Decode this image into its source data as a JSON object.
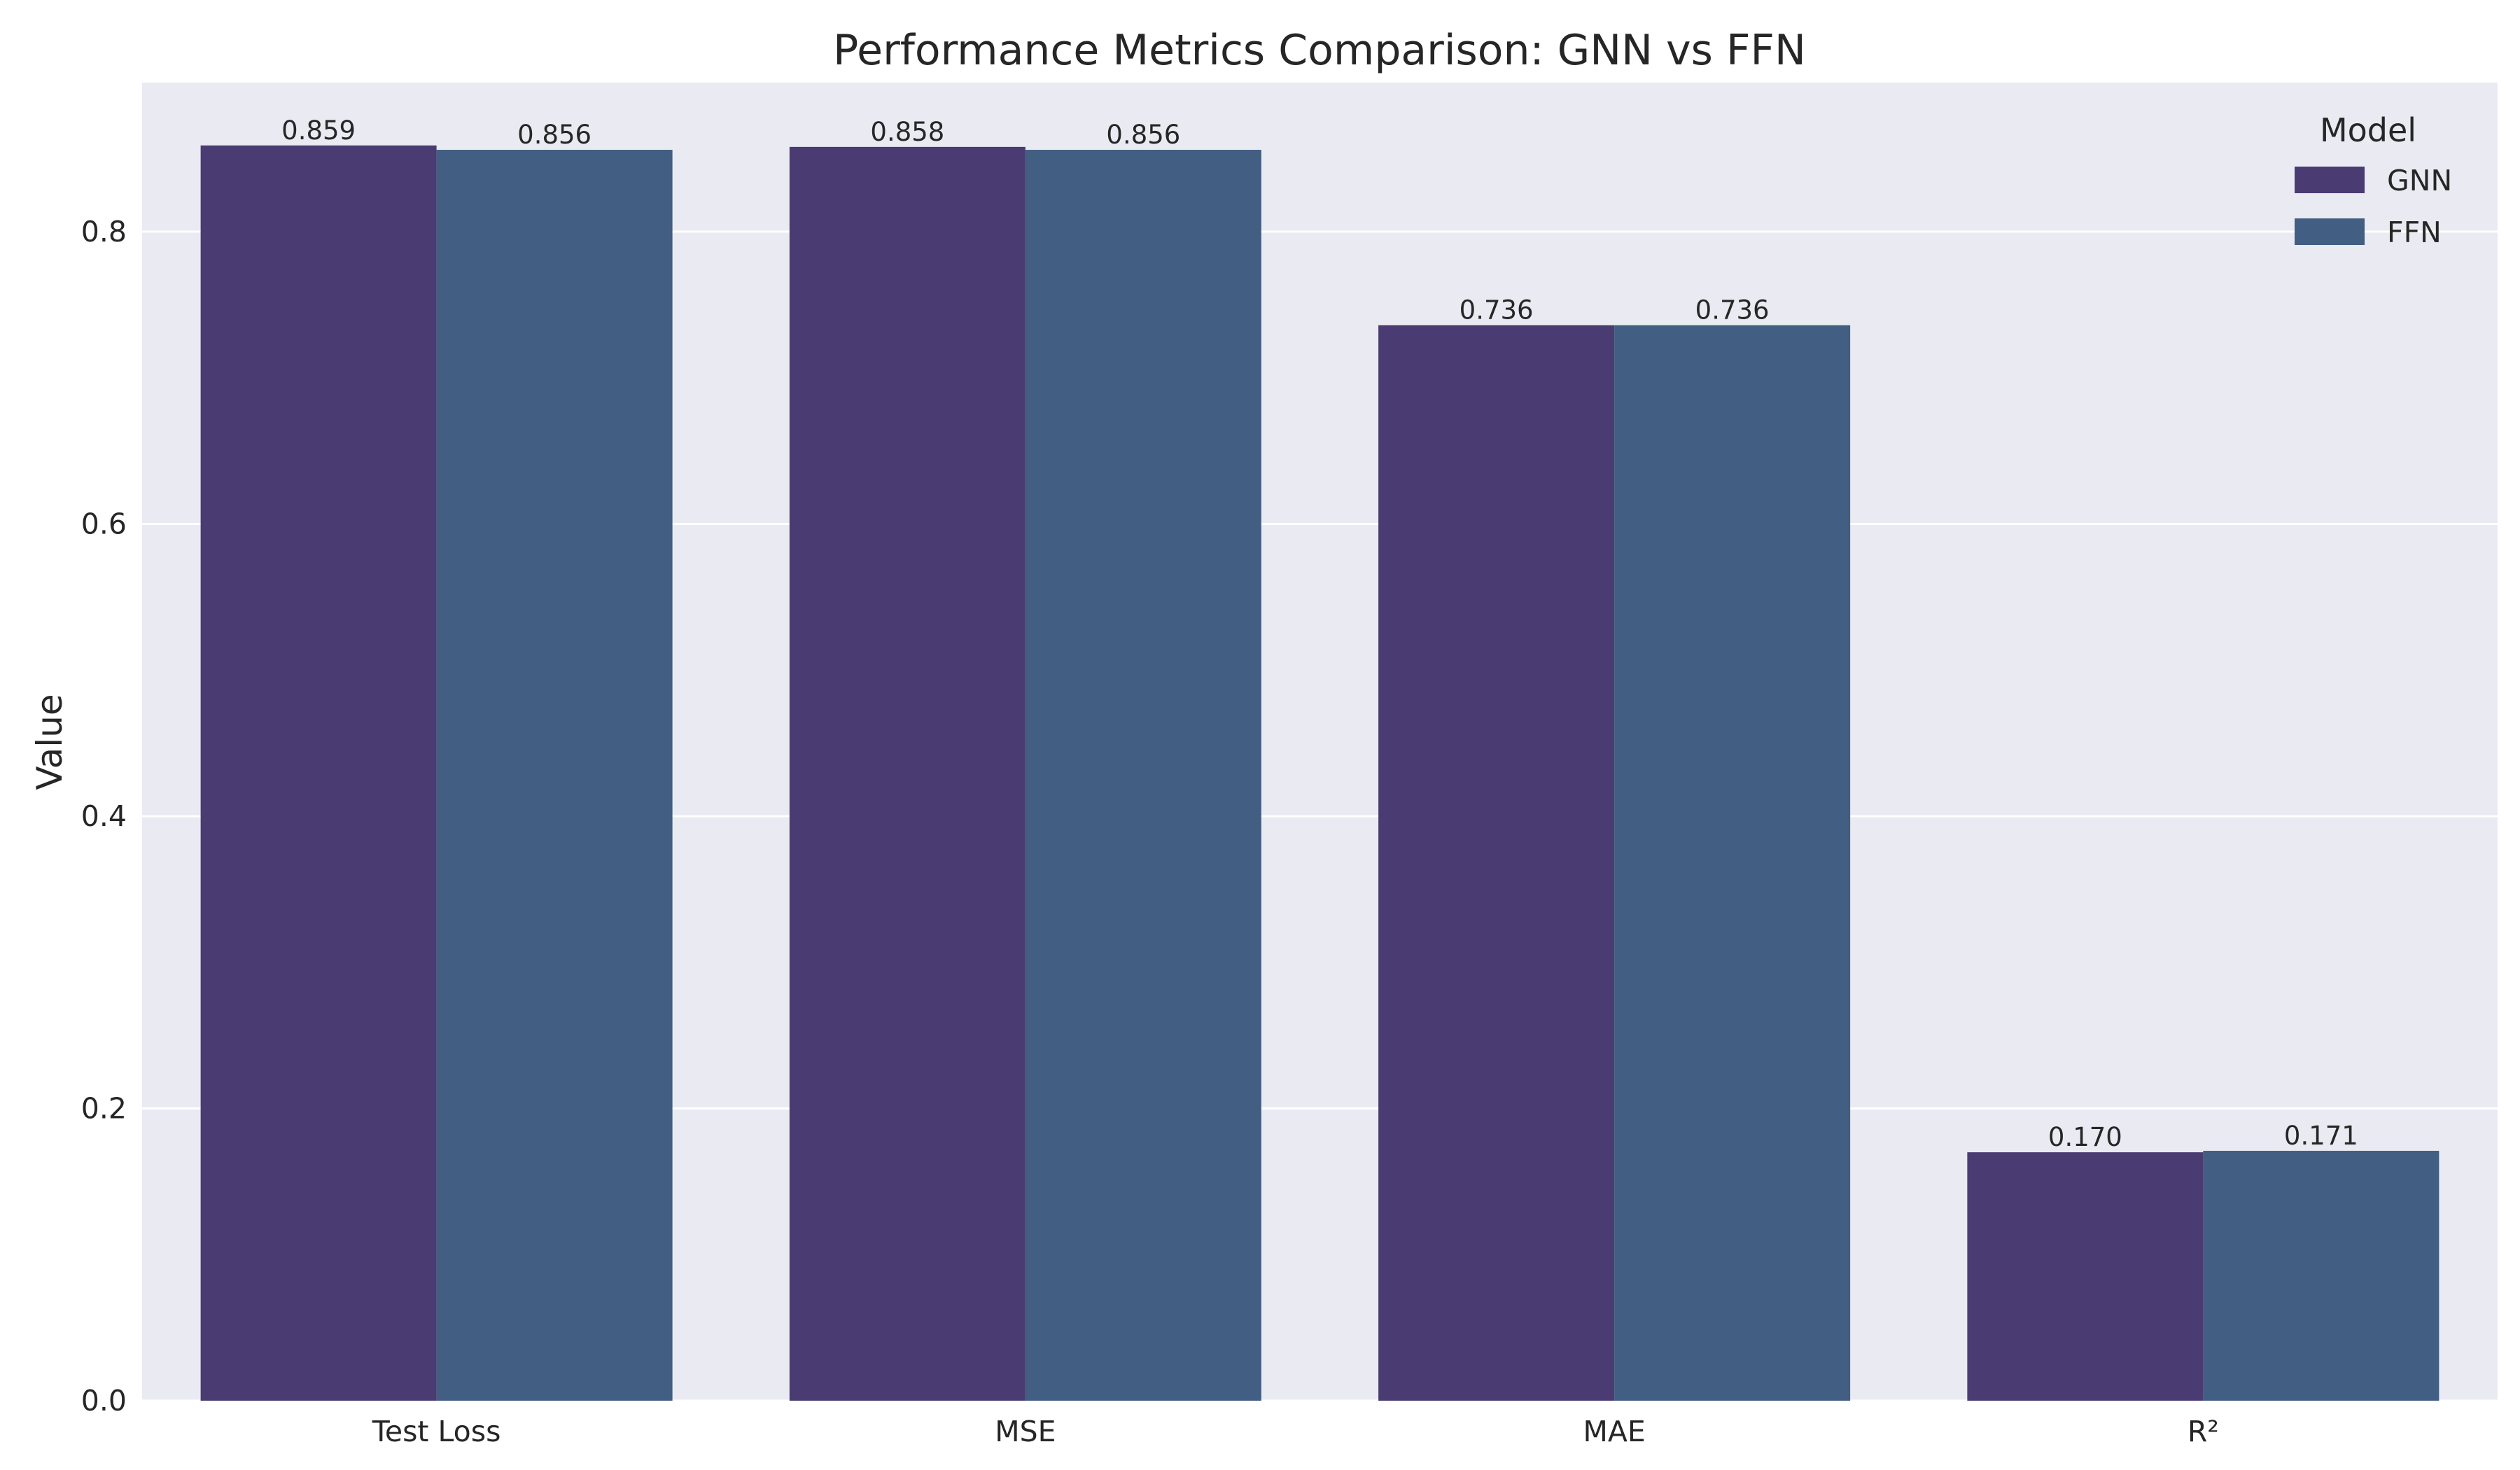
{
  "colors": {
    "plot_background": "#EAEAF2",
    "grid": "#FFFFFF",
    "text": "#262626"
  },
  "chart_data": {
    "type": "bar",
    "title": "Performance Metrics Comparison: GNN vs FFN",
    "xlabel": "",
    "ylabel": "Value",
    "categories": [
      "Test Loss",
      "MSE",
      "MAE",
      "R²"
    ],
    "series": [
      {
        "name": "GNN",
        "color": "#4A3B72",
        "values": [
          0.859,
          0.858,
          0.736,
          0.17
        ],
        "value_labels": [
          "0.859",
          "0.858",
          "0.736",
          "0.170"
        ]
      },
      {
        "name": "FFN",
        "color": "#425E82",
        "values": [
          0.856,
          0.856,
          0.736,
          0.171
        ],
        "value_labels": [
          "0.856",
          "0.856",
          "0.736",
          "0.171"
        ]
      }
    ],
    "ylim": [
      0,
      0.902
    ],
    "yticks": [
      0.0,
      0.2,
      0.4,
      0.6,
      0.8
    ],
    "ytick_labels": [
      "0.0",
      "0.2",
      "0.4",
      "0.6",
      "0.8"
    ],
    "grid": true,
    "legend": {
      "title": "Model",
      "placement": "top-right"
    }
  }
}
